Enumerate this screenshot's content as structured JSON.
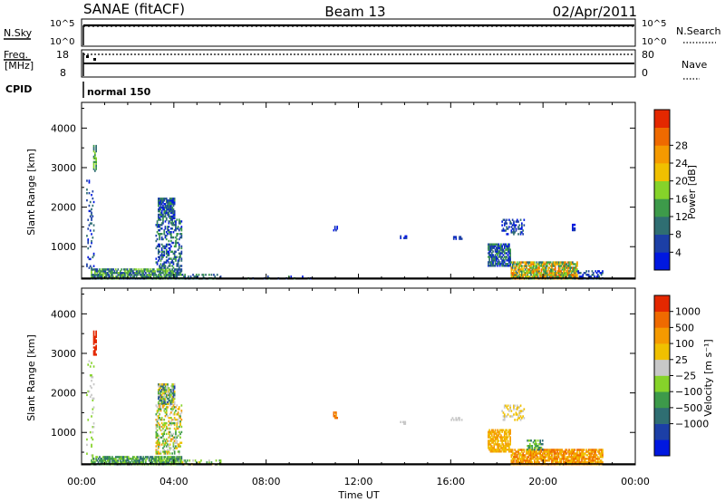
{
  "header": {
    "station": "SANAE (fitACF)",
    "beam": "Beam 13",
    "date": "02/Apr/2011"
  },
  "top_panels": {
    "nsky": {
      "label": "N.Sky",
      "ticks": [
        "10^5",
        "10^0"
      ]
    },
    "nsearch": {
      "label": "N.Search",
      "ticks": [
        "10^5",
        "10^0"
      ]
    },
    "freq": {
      "label_line1": "Freq.",
      "label_line2": "[MHz]",
      "ticks": [
        "18",
        "8"
      ]
    },
    "nave": {
      "label": "Nave",
      "ticks": [
        "80",
        "0"
      ]
    },
    "cpid": {
      "label": "CPID",
      "value": "normal 150"
    }
  },
  "panels": {
    "power": {
      "ylabel": "Slant Range [km]",
      "colorbar_label": "Power [dB]"
    },
    "velocity": {
      "ylabel": "Slant Range [km]",
      "colorbar_label": "Velocity [m s⁻¹]"
    }
  },
  "xaxis": {
    "label": "Time UT"
  },
  "chart_data": [
    {
      "type": "heatmap",
      "name_on_chart": "Power [dB]",
      "xlabel": "Time UT",
      "ylabel": "Slant Range [km]",
      "x_ticks": [
        "00:00",
        "04:00",
        "08:00",
        "12:00",
        "16:00",
        "20:00",
        "00:00"
      ],
      "xlim_hours": [
        0,
        24
      ],
      "y_ticks": [
        1000,
        2000,
        3000,
        4000
      ],
      "ylim": [
        180,
        4650
      ],
      "colorbar": {
        "labels": [
          "4",
          "8",
          "12",
          "16",
          "20",
          "24",
          "28"
        ],
        "colors": [
          "#0018e0",
          "#1c3fa6",
          "#2f6e72",
          "#3d9a4a",
          "#86d32a",
          "#f0c000",
          "#f59a00",
          "#ef6a00",
          "#e42800"
        ]
      },
      "patches": [
        {
          "t0": 0.4,
          "t1": 4.3,
          "r0": 180,
          "r1": 420,
          "density": 0.75,
          "level": [
            1,
            4
          ]
        },
        {
          "t0": 4.3,
          "t1": 6.0,
          "r0": 180,
          "r1": 300,
          "density": 0.35,
          "level": [
            1,
            3
          ]
        },
        {
          "t0": 0.2,
          "t1": 0.5,
          "r0": 400,
          "r1": 2800,
          "density": 0.12,
          "level": [
            0,
            2
          ]
        },
        {
          "t0": 0.5,
          "t1": 0.65,
          "r0": 2900,
          "r1": 3550,
          "density": 0.7,
          "level": [
            2,
            4
          ]
        },
        {
          "t0": 3.3,
          "t1": 4.0,
          "r0": 1700,
          "r1": 2200,
          "density": 0.75,
          "level": [
            0,
            3
          ]
        },
        {
          "t0": 3.2,
          "t1": 4.3,
          "r0": 450,
          "r1": 1700,
          "density": 0.4,
          "level": [
            0,
            3
          ]
        },
        {
          "t0": 10.9,
          "t1": 11.1,
          "r0": 1350,
          "r1": 1500,
          "density": 0.7,
          "level": [
            0,
            1
          ]
        },
        {
          "t0": 13.8,
          "t1": 14.1,
          "r0": 1200,
          "r1": 1280,
          "density": 0.7,
          "level": [
            0,
            1
          ]
        },
        {
          "t0": 16.0,
          "t1": 16.5,
          "r0": 1180,
          "r1": 1260,
          "density": 0.6,
          "level": [
            0,
            1
          ]
        },
        {
          "t0": 17.6,
          "t1": 18.6,
          "r0": 500,
          "r1": 1050,
          "density": 0.7,
          "level": [
            0,
            3
          ]
        },
        {
          "t0": 18.2,
          "t1": 19.2,
          "r0": 1300,
          "r1": 1700,
          "density": 0.4,
          "level": [
            0,
            2
          ]
        },
        {
          "t0": 18.6,
          "t1": 21.5,
          "r0": 180,
          "r1": 600,
          "density": 0.8,
          "level": [
            2,
            7
          ]
        },
        {
          "t0": 21.5,
          "t1": 22.6,
          "r0": 180,
          "r1": 400,
          "density": 0.45,
          "level": [
            0,
            2
          ]
        },
        {
          "t0": 21.2,
          "t1": 21.4,
          "r0": 1400,
          "r1": 1560,
          "density": 0.6,
          "level": [
            0,
            1
          ]
        },
        {
          "t0": 7.0,
          "t1": 10.5,
          "r0": 180,
          "r1": 240,
          "density": 0.1,
          "level": [
            0,
            3
          ]
        }
      ]
    },
    {
      "type": "heatmap",
      "name_on_chart": "Velocity [m s⁻¹]",
      "xlabel": "Time UT",
      "ylabel": "Slant Range [km]",
      "x_ticks": [
        "00:00",
        "04:00",
        "08:00",
        "12:00",
        "16:00",
        "20:00",
        "00:00"
      ],
      "xlim_hours": [
        0,
        24
      ],
      "y_ticks": [
        1000,
        2000,
        3000,
        4000
      ],
      "ylim": [
        180,
        4650
      ],
      "colorbar": {
        "labels": [
          "1000",
          "500",
          "100",
          "25",
          "−25",
          "−100",
          "−500",
          "−1000"
        ],
        "colors": [
          "#0018e0",
          "#1c3fa6",
          "#2f6e72",
          "#3d9a4a",
          "#86d32a",
          "#c8c8c8",
          "#f0c000",
          "#f59a00",
          "#ef6a00",
          "#e42800"
        ]
      },
      "patches": [
        {
          "t0": 0.4,
          "t1": 4.3,
          "r0": 180,
          "r1": 400,
          "density": 0.75,
          "level": [
            2,
            4
          ]
        },
        {
          "t0": 4.3,
          "t1": 6.0,
          "r0": 180,
          "r1": 300,
          "density": 0.3,
          "level": [
            3,
            6
          ]
        },
        {
          "t0": 0.2,
          "t1": 0.5,
          "r0": 400,
          "r1": 2800,
          "density": 0.1,
          "level": [
            4,
            5
          ]
        },
        {
          "t0": 0.5,
          "t1": 0.65,
          "r0": 2950,
          "r1": 3550,
          "density": 0.8,
          "level": [
            9,
            9
          ]
        },
        {
          "t0": 3.3,
          "t1": 4.0,
          "r0": 1700,
          "r1": 2200,
          "density": 0.75,
          "level": [
            1,
            6
          ]
        },
        {
          "t0": 3.2,
          "t1": 4.3,
          "r0": 450,
          "r1": 1700,
          "density": 0.4,
          "level": [
            3,
            7
          ]
        },
        {
          "t0": 10.9,
          "t1": 11.1,
          "r0": 1350,
          "r1": 1500,
          "density": 0.7,
          "level": [
            7,
            8
          ]
        },
        {
          "t0": 13.8,
          "t1": 14.1,
          "r0": 1200,
          "r1": 1280,
          "density": 0.6,
          "level": [
            5,
            5
          ]
        },
        {
          "t0": 16.0,
          "t1": 16.5,
          "r0": 1300,
          "r1": 1380,
          "density": 0.6,
          "level": [
            5,
            5
          ]
        },
        {
          "t0": 17.6,
          "t1": 18.6,
          "r0": 500,
          "r1": 1050,
          "density": 0.75,
          "level": [
            6,
            7
          ]
        },
        {
          "t0": 18.2,
          "t1": 19.2,
          "r0": 1300,
          "r1": 1700,
          "density": 0.35,
          "level": [
            5,
            6
          ]
        },
        {
          "t0": 18.6,
          "t1": 22.6,
          "r0": 180,
          "r1": 550,
          "density": 0.8,
          "level": [
            6,
            8
          ]
        },
        {
          "t0": 19.3,
          "t1": 20.0,
          "r0": 550,
          "r1": 800,
          "density": 0.5,
          "level": [
            2,
            4
          ]
        }
      ]
    }
  ]
}
